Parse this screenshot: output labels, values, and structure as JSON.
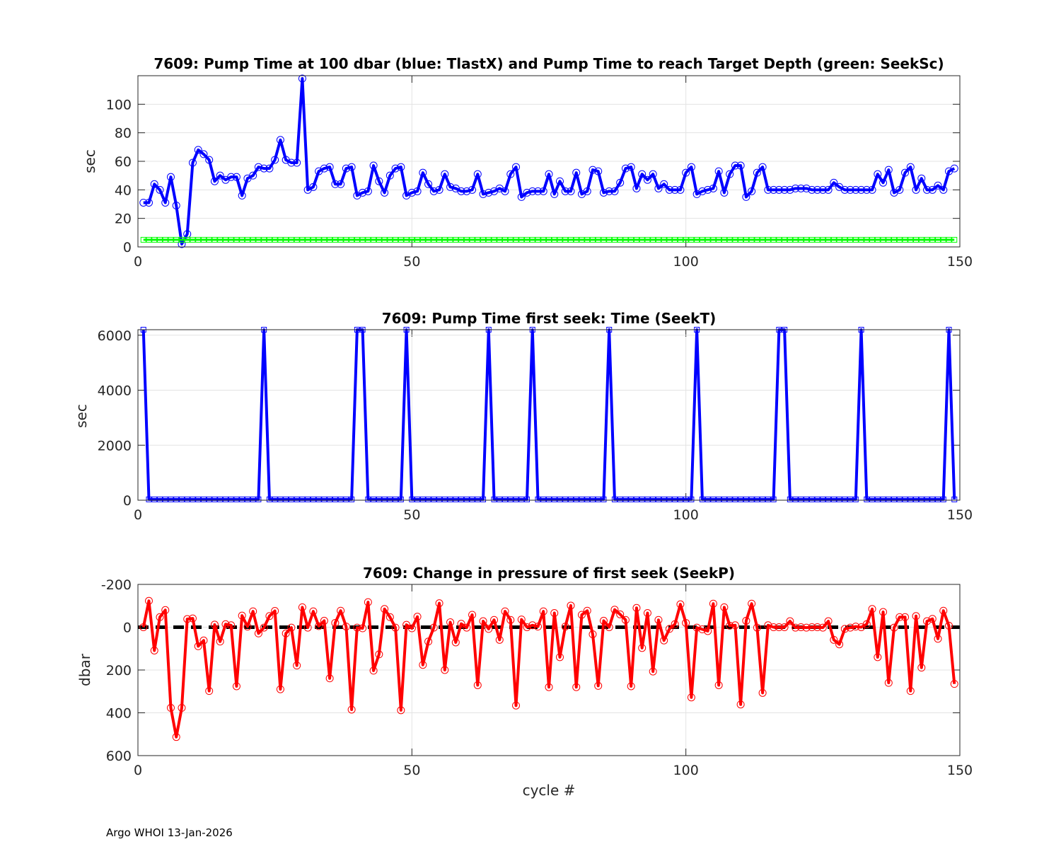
{
  "footer": "Argo WHOI 13-Jan-2026",
  "chart_data": [
    {
      "type": "line",
      "title": "7609:  Pump Time at 100 dbar (blue: TlastX) and Pump Time to reach Target Depth (green: SeekSc)",
      "xlabel": "",
      "ylabel": "sec",
      "xlim": [
        0,
        150
      ],
      "ylim": [
        0,
        120
      ],
      "xticks": [
        0,
        50,
        100,
        150
      ],
      "yticks": [
        0,
        20,
        40,
        60,
        80,
        100
      ],
      "reverse_y": false,
      "grid": true,
      "series": [
        {
          "name": "TlastX",
          "color": "#0000ff",
          "marker": "circle",
          "values": [
            31,
            31,
            44,
            40,
            31,
            49,
            29,
            2,
            9,
            59,
            68,
            65,
            61,
            46,
            50,
            47,
            49,
            49,
            36,
            48,
            50,
            56,
            55,
            55,
            61,
            75,
            61,
            59,
            59,
            118,
            40,
            42,
            53,
            55,
            56,
            44,
            44,
            55,
            56,
            36,
            38,
            39,
            57,
            46,
            38,
            50,
            55,
            56,
            36,
            38,
            39,
            52,
            44,
            39,
            40,
            51,
            42,
            41,
            39,
            39,
            40,
            51,
            37,
            38,
            39,
            41,
            39,
            51,
            56,
            35,
            38,
            39,
            39,
            39,
            51,
            37,
            46,
            39,
            39,
            52,
            37,
            39,
            54,
            53,
            38,
            39,
            39,
            45,
            55,
            56,
            41,
            51,
            47,
            51,
            41,
            44,
            40,
            40,
            40,
            52,
            56,
            37,
            39,
            40,
            41,
            53,
            38,
            51,
            57,
            57,
            35,
            39,
            52,
            56,
            40,
            40,
            40,
            40,
            40,
            41,
            41,
            41,
            40,
            40,
            40,
            40,
            45,
            42,
            40,
            40,
            40,
            40,
            40,
            40,
            51,
            45,
            54,
            38,
            40,
            52,
            56,
            40,
            48,
            40,
            40,
            43,
            40,
            53,
            55
          ]
        },
        {
          "name": "SeekSc",
          "color": "#00ff00",
          "marker": "square",
          "values": [
            5,
            5,
            5,
            5,
            5,
            5,
            5,
            5,
            5,
            5,
            5,
            5,
            5,
            5,
            5,
            5,
            5,
            5,
            5,
            5,
            5,
            5,
            5,
            5,
            5,
            5,
            5,
            5,
            5,
            5,
            5,
            5,
            5,
            5,
            5,
            5,
            5,
            5,
            5,
            5,
            5,
            5,
            5,
            5,
            5,
            5,
            5,
            5,
            5,
            5,
            5,
            5,
            5,
            5,
            5,
            5,
            5,
            5,
            5,
            5,
            5,
            5,
            5,
            5,
            5,
            5,
            5,
            5,
            5,
            5,
            5,
            5,
            5,
            5,
            5,
            5,
            5,
            5,
            5,
            5,
            5,
            5,
            5,
            5,
            5,
            5,
            5,
            5,
            5,
            5,
            5,
            5,
            5,
            5,
            5,
            5,
            5,
            5,
            5,
            5,
            5,
            5,
            5,
            5,
            5,
            5,
            5,
            5,
            5,
            5,
            5,
            5,
            5,
            5,
            5,
            5,
            5,
            5,
            5,
            5,
            5,
            5,
            5,
            5,
            5,
            5,
            5,
            5,
            5,
            5,
            5,
            5,
            5,
            5,
            5,
            5,
            5,
            5,
            5,
            5,
            5,
            5,
            5,
            5,
            5,
            5,
            5,
            5,
            5
          ]
        }
      ]
    },
    {
      "type": "line",
      "title": "7609: Pump Time first seek: Time (SeekT)",
      "xlabel": "",
      "ylabel": "sec",
      "xlim": [
        0,
        150
      ],
      "ylim": [
        0,
        6200
      ],
      "xticks": [
        0,
        50,
        100,
        150
      ],
      "yticks": [
        0,
        2000,
        4000,
        6000
      ],
      "reverse_y": false,
      "grid": true,
      "series": [
        {
          "name": "SeekT",
          "color": "#0000ff",
          "marker": "square",
          "values": [
            6200,
            30,
            30,
            30,
            30,
            30,
            30,
            30,
            30,
            30,
            30,
            30,
            30,
            30,
            30,
            30,
            30,
            30,
            30,
            30,
            30,
            30,
            6200,
            30,
            30,
            30,
            30,
            30,
            30,
            30,
            30,
            30,
            30,
            30,
            30,
            30,
            30,
            30,
            30,
            6200,
            6200,
            30,
            30,
            30,
            30,
            30,
            30,
            30,
            6200,
            30,
            30,
            30,
            30,
            30,
            30,
            30,
            30,
            30,
            30,
            30,
            30,
            30,
            30,
            6200,
            30,
            30,
            30,
            30,
            30,
            30,
            30,
            6200,
            30,
            30,
            30,
            30,
            30,
            30,
            30,
            30,
            30,
            30,
            30,
            30,
            30,
            6200,
            30,
            30,
            30,
            30,
            30,
            30,
            30,
            30,
            30,
            30,
            30,
            30,
            30,
            30,
            30,
            6200,
            30,
            30,
            30,
            30,
            30,
            30,
            30,
            30,
            30,
            30,
            30,
            30,
            30,
            30,
            6200,
            6200,
            30,
            30,
            30,
            30,
            30,
            30,
            30,
            30,
            30,
            30,
            30,
            30,
            30,
            6200,
            30,
            30,
            30,
            30,
            30,
            30,
            30,
            30,
            30,
            30,
            30,
            30,
            30,
            30,
            30,
            6200,
            30
          ]
        }
      ]
    },
    {
      "type": "line",
      "title": "7609: Change in pressure of first seek (SeekP)",
      "xlabel": "cycle #",
      "ylabel": "dbar",
      "xlim": [
        0,
        150
      ],
      "ylim": [
        -200,
        600
      ],
      "xticks": [
        0,
        50,
        100,
        150
      ],
      "yticks": [
        -200,
        0,
        200,
        400,
        600
      ],
      "reverse_y": true,
      "grid": true,
      "reference_line": {
        "y": 0,
        "color": "#000000",
        "style": "dashed"
      },
      "series": [
        {
          "name": "SeekP",
          "color": "#ff0000",
          "marker": "circle",
          "values": [
            0,
            -123,
            109,
            -47,
            -80,
            377,
            513,
            377,
            -38,
            -41,
            89,
            62,
            298,
            -12,
            67,
            -14,
            -9,
            276,
            -54,
            -3,
            -74,
            29,
            2,
            -52,
            -76,
            290,
            29,
            2,
            179,
            -93,
            2,
            -74,
            -5,
            -30,
            239,
            -20,
            -77,
            -3,
            385,
            2,
            5,
            -117,
            203,
            127,
            -85,
            -47,
            2,
            388,
            -11,
            5,
            -49,
            176,
            67,
            2,
            -112,
            200,
            -23,
            71,
            -16,
            2,
            -58,
            271,
            -28,
            8,
            -34,
            59,
            -74,
            -34,
            366,
            -36,
            0,
            -9,
            -3,
            -74,
            280,
            -66,
            140,
            -3,
            -101,
            280,
            -58,
            -77,
            33,
            274,
            -30,
            0,
            -82,
            -60,
            -34,
            276,
            -90,
            97,
            -66,
            207,
            -34,
            62,
            8,
            -14,
            -107,
            -20,
            328,
            2,
            10,
            18,
            -110,
            271,
            -93,
            -7,
            -9,
            361,
            -30,
            -110,
            2,
            307,
            -9,
            0,
            0,
            0,
            -28,
            2,
            0,
            2,
            0,
            0,
            2,
            -28,
            59,
            80,
            8,
            2,
            -3,
            0,
            -14,
            -85,
            140,
            -71,
            260,
            2,
            -47,
            -47,
            298,
            -52,
            189,
            -28,
            -39,
            54,
            -77,
            -7,
            265
          ]
        }
      ]
    }
  ]
}
